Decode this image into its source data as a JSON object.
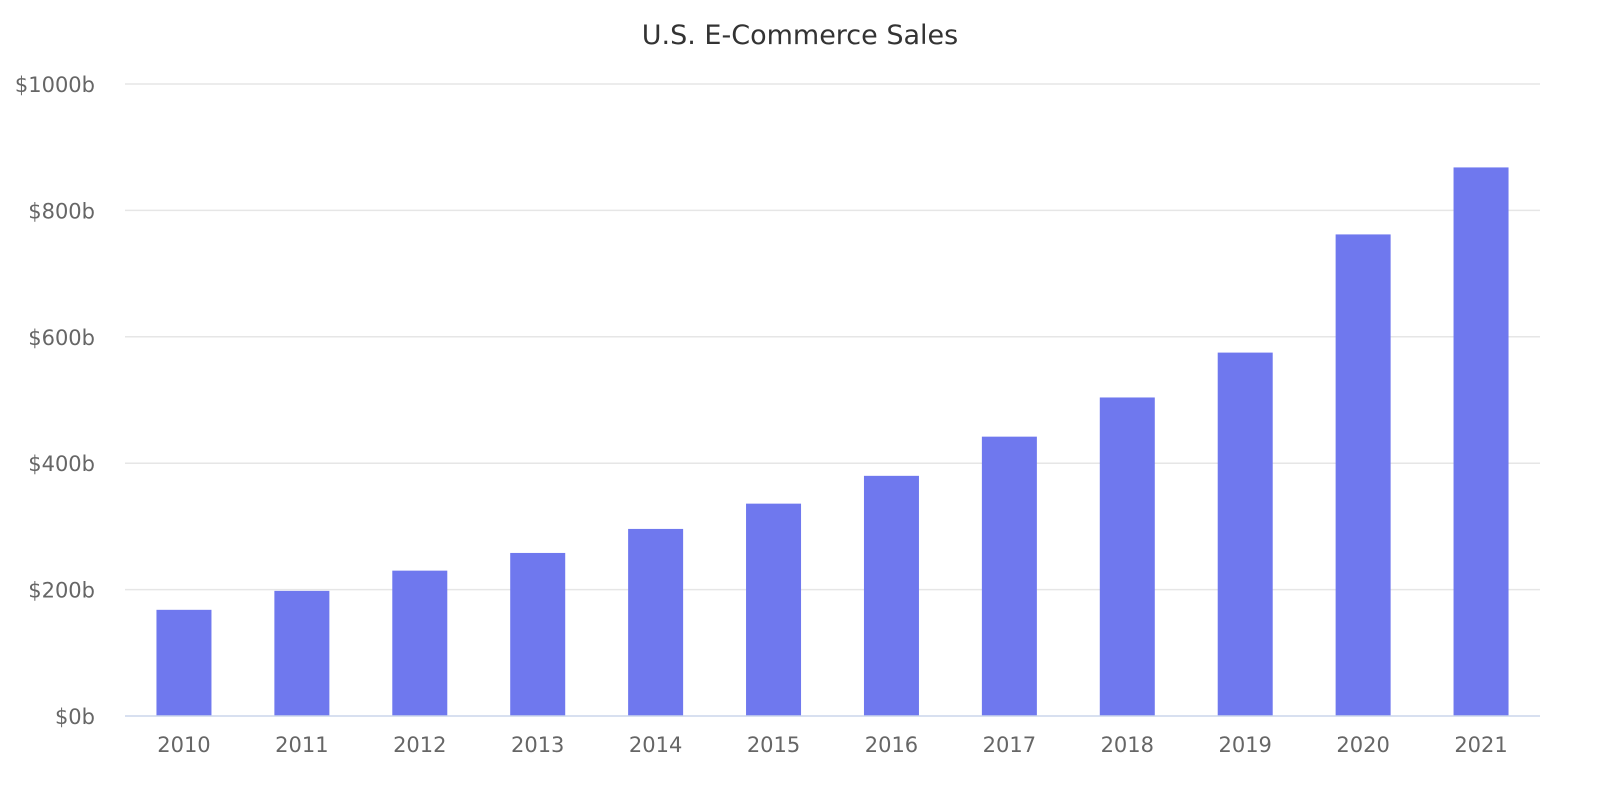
{
  "chart_data": {
    "type": "bar",
    "title": "U.S. E-Commerce Sales",
    "xlabel": "",
    "ylabel": "",
    "categories": [
      "2010",
      "2011",
      "2012",
      "2013",
      "2014",
      "2015",
      "2016",
      "2017",
      "2018",
      "2019",
      "2020",
      "2021"
    ],
    "values": [
      168,
      198,
      230,
      258,
      296,
      336,
      380,
      442,
      504,
      575,
      762,
      868
    ],
    "ylim": [
      0,
      1000
    ],
    "y_ticks": [
      0,
      200,
      400,
      600,
      800,
      1000
    ],
    "y_tick_labels": [
      "$0b",
      "$200b",
      "$400b",
      "$600b",
      "$800b",
      "$1000b"
    ],
    "grid": true,
    "legend": "none",
    "colors": {
      "bar": "#6f78ee",
      "grid": "#e6e6e6",
      "axis": "#ccd6eb",
      "title": "#333333",
      "tick": "#666666"
    }
  }
}
